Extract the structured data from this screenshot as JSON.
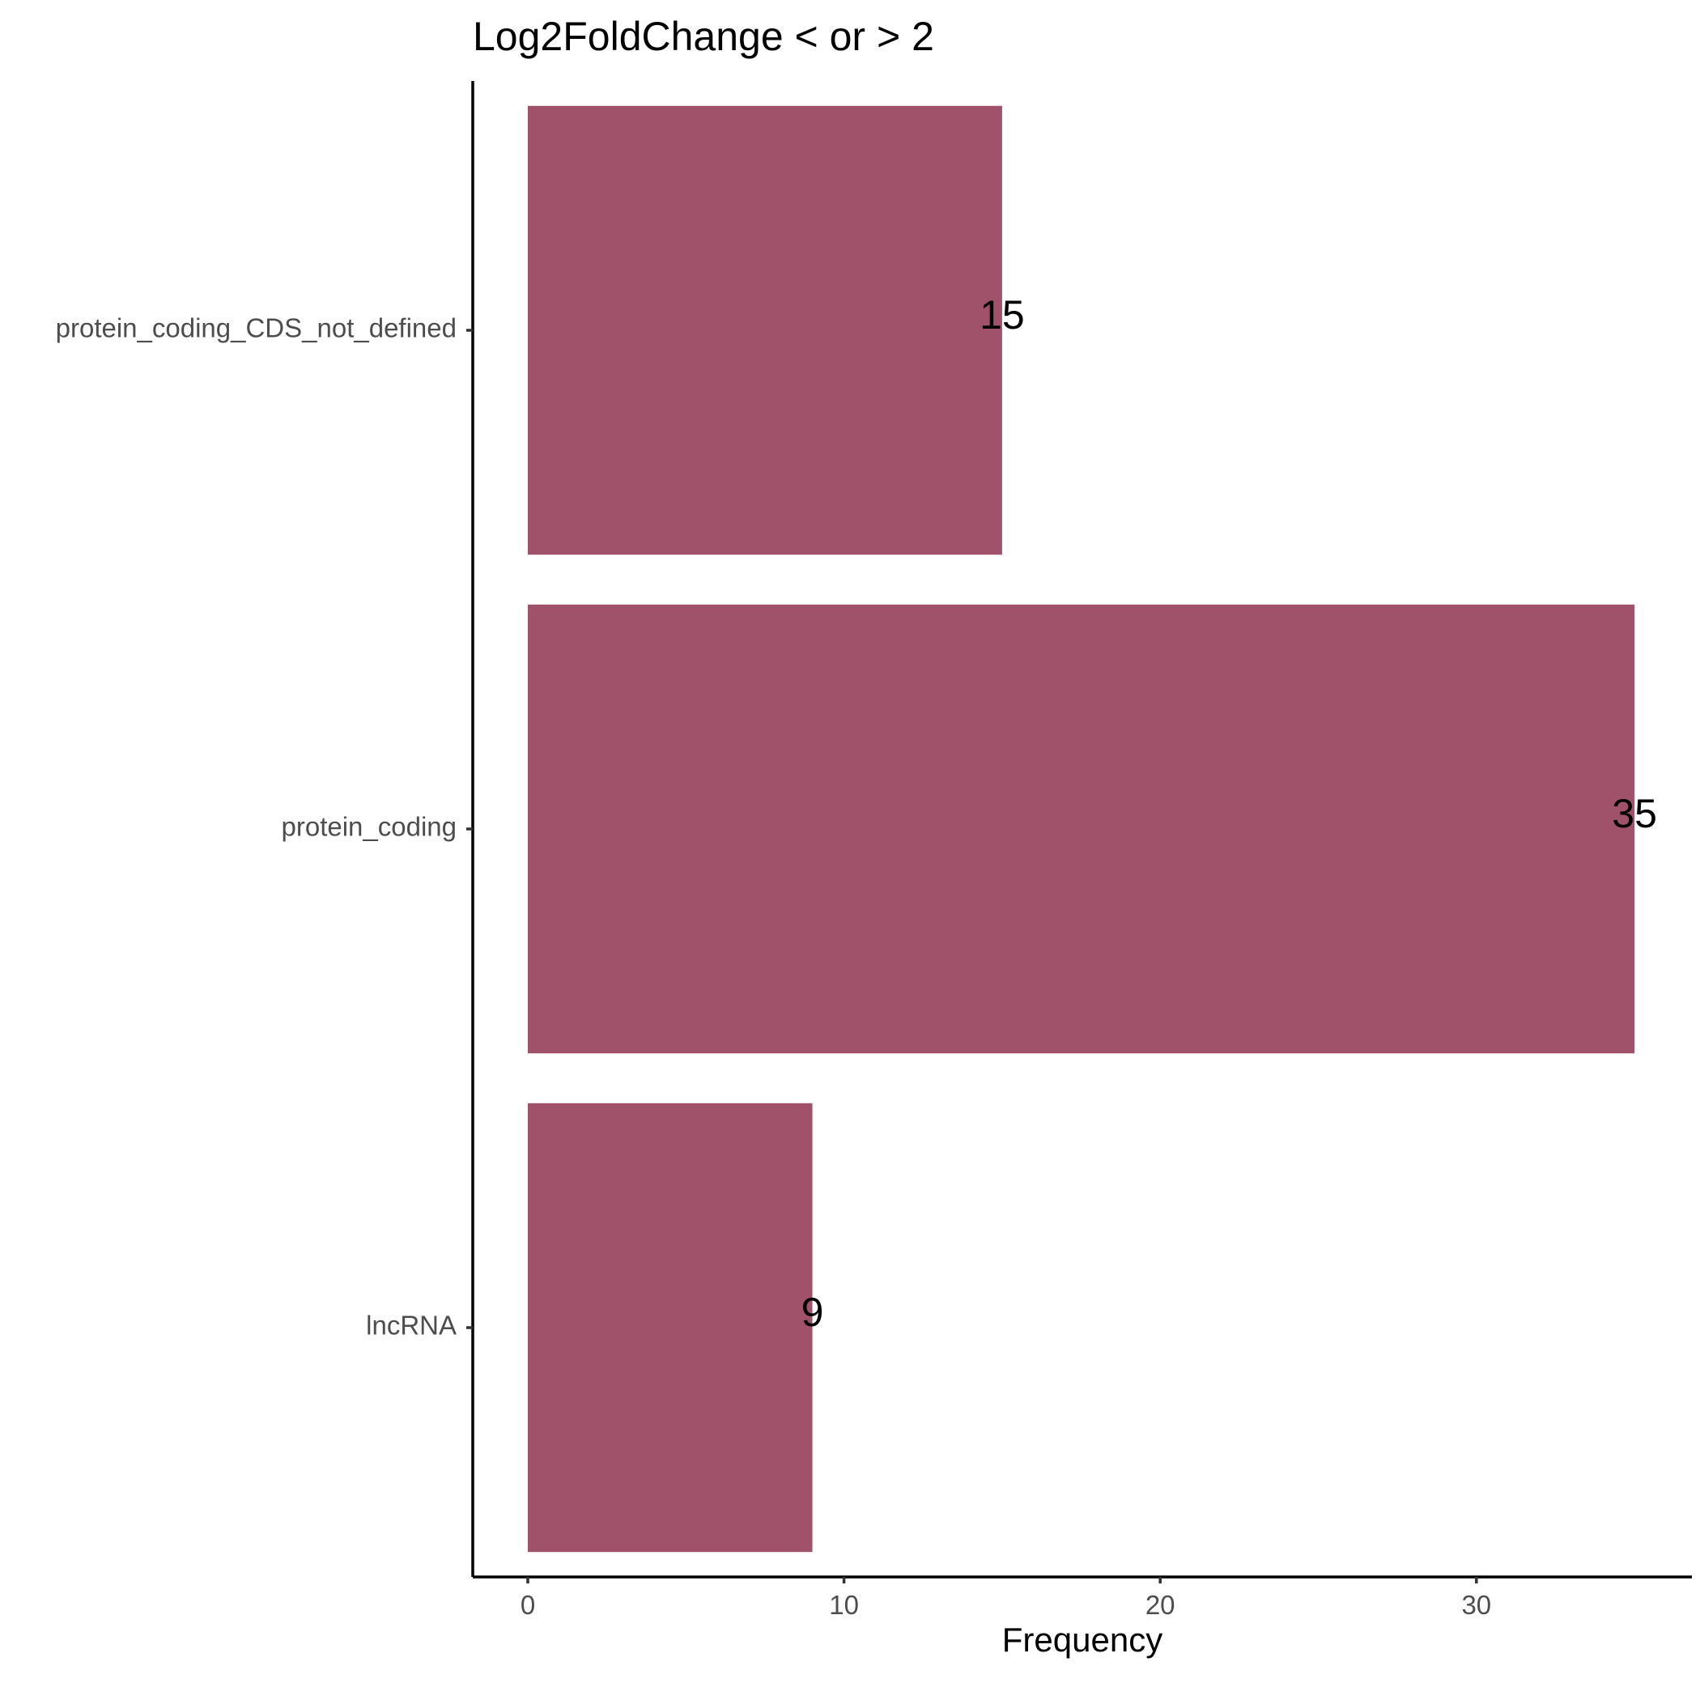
{
  "chart_data": {
    "type": "bar",
    "orientation": "horizontal",
    "title": "Log2FoldChange < or > 2",
    "xlabel": "Frequency",
    "ylabel": "",
    "categories": [
      "protein_coding_CDS_not_defined",
      "protein_coding",
      "lncRNA"
    ],
    "values": [
      15,
      35,
      9
    ],
    "data_labels": [
      "15",
      "35",
      "9"
    ],
    "xlim": [
      0,
      36.75
    ],
    "xticks": [
      0,
      10,
      20,
      30
    ],
    "xtick_labels": [
      "0",
      "10",
      "20",
      "30"
    ],
    "grid": false,
    "legend": "none",
    "colors": {
      "bar": "#a0526a",
      "axis": "#000000",
      "tick_text": "#4d4d4d"
    }
  }
}
